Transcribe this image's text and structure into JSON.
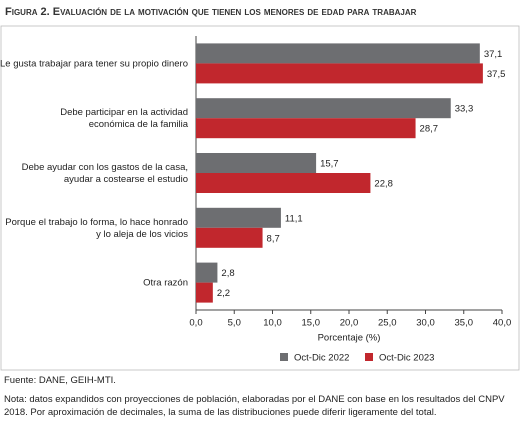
{
  "chart_data": {
    "type": "bar",
    "orientation": "horizontal",
    "title": "Figura 2. Evaluación de la motivación que tienen los menores de edad para trabajar",
    "categories": [
      "Le gusta trabajar para tener su propio dinero",
      "Debe participar en la actividad\neconómica de la familia",
      "Debe ayudar con los gastos de la casa,\nayudar a costearse el estudio",
      "Porque el trabajo lo forma, lo hace honrado\ny lo aleja de los vicios",
      "Otra razón"
    ],
    "series": [
      {
        "name": "Oct-Dic 2022",
        "color": "#6d6e71",
        "values": [
          37.1,
          33.3,
          15.7,
          11.1,
          2.8
        ],
        "value_labels": [
          "37,1",
          "33,3",
          "15,7",
          "11,1",
          "2,8"
        ]
      },
      {
        "name": "Oct-Dic 2023",
        "color": "#c1272d",
        "values": [
          37.5,
          28.7,
          22.8,
          8.7,
          2.2
        ],
        "value_labels": [
          "37,5",
          "28,7",
          "22,8",
          "8,7",
          "2,2"
        ]
      }
    ],
    "xlabel": "Porcentaje (%)",
    "xlim": [
      0,
      40
    ],
    "xticks": [
      {
        "value": 0,
        "label": "0,0"
      },
      {
        "value": 5,
        "label": "5,0"
      },
      {
        "value": 10,
        "label": "10,0"
      },
      {
        "value": 15,
        "label": "15,0"
      },
      {
        "value": 20,
        "label": "20,0"
      },
      {
        "value": 25,
        "label": "25,0"
      },
      {
        "value": 30,
        "label": "30,0"
      },
      {
        "value": 35,
        "label": "35,0"
      },
      {
        "value": 40,
        "label": "40,0"
      }
    ],
    "legend": "bottom-right",
    "source": "Fuente: DANE, GEIH-MTI.",
    "note": "Nota: datos expandidos con proyecciones de población, elaboradas por el DANE con base en los resultados del CNPV 2018. Por aproximación de decimales, la suma de las distribuciones puede diferir ligeramente del total."
  }
}
